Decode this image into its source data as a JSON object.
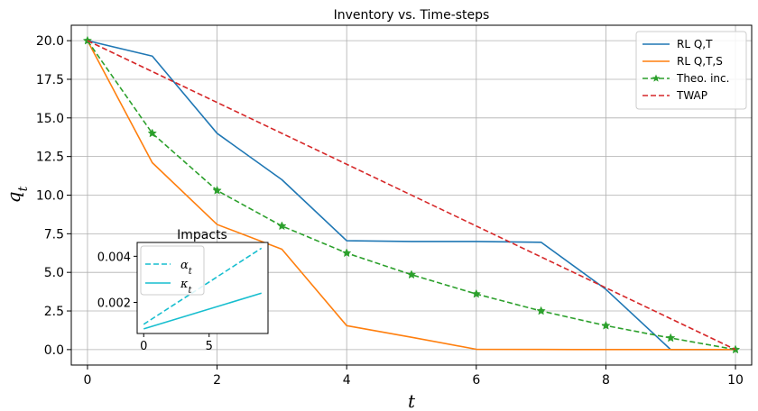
{
  "chart_data": [
    {
      "type": "line",
      "title": "Inventory vs. Time-steps",
      "xlabel": "t",
      "ylabel": "q_t",
      "xlim": [
        -0.25,
        10.25
      ],
      "ylim": [
        -1.0,
        21.0
      ],
      "xticks": [
        0,
        2,
        4,
        6,
        8,
        10
      ],
      "xtick_labels": [
        "0",
        "2",
        "4",
        "6",
        "8",
        "10"
      ],
      "yticks": [
        0,
        2.5,
        5,
        7.5,
        10,
        12.5,
        15,
        17.5,
        20
      ],
      "ytick_labels": [
        "0.0",
        "2.5",
        "5.0",
        "7.5",
        "10.0",
        "12.5",
        "15.0",
        "17.5",
        "20.0"
      ],
      "grid": true,
      "legend": "top-right",
      "series": [
        {
          "name": "RL Q,T",
          "color": "#1f77b4",
          "dash": "solid",
          "marker": "none",
          "x": [
            0,
            1,
            2,
            3,
            4,
            5,
            6,
            7,
            8,
            9,
            10
          ],
          "y": [
            20,
            19,
            14,
            11,
            7.05,
            7.0,
            7.0,
            6.95,
            3.9,
            0.0,
            0.0
          ]
        },
        {
          "name": "RL Q,T,S",
          "color": "#ff7f0e",
          "dash": "solid",
          "marker": "none",
          "x": [
            0,
            1,
            2,
            3,
            4,
            5,
            6,
            7,
            8,
            9,
            10
          ],
          "y": [
            20,
            12.1,
            8.1,
            6.5,
            1.55,
            0.8,
            0.02,
            0.01,
            0.0,
            0.0,
            0.0
          ]
        },
        {
          "name": "Theo. inc.",
          "color": "#2ca02c",
          "dash": "dashed",
          "marker": "star",
          "x": [
            0,
            1,
            2,
            3,
            4,
            5,
            6,
            7,
            8,
            9,
            10
          ],
          "y": [
            20,
            14.0,
            10.3,
            8.0,
            6.25,
            4.85,
            3.6,
            2.5,
            1.55,
            0.75,
            0.0
          ]
        },
        {
          "name": "TWAP",
          "color": "#d62728",
          "dash": "dashed",
          "marker": "none",
          "x": [
            0,
            10
          ],
          "y": [
            20,
            0
          ]
        }
      ]
    },
    {
      "type": "line",
      "title": "Impacts",
      "xlabel": "",
      "ylabel": "",
      "xlim": [
        -0.5,
        9.5
      ],
      "ylim": [
        0.00065,
        0.0046
      ],
      "xticks": [
        0,
        5
      ],
      "xtick_labels": [
        "0",
        "5"
      ],
      "yticks": [
        0.002,
        0.004
      ],
      "ytick_labels": [
        "0.002",
        "0.004"
      ],
      "grid": false,
      "legend": "top-left",
      "series": [
        {
          "name": "α_t",
          "color": "#17becf",
          "dash": "dashed",
          "x": [
            0,
            9
          ],
          "y": [
            0.00105,
            0.00435
          ]
        },
        {
          "name": "κ_t",
          "color": "#17becf",
          "dash": "solid",
          "x": [
            0,
            9
          ],
          "y": [
            0.00085,
            0.0024
          ]
        }
      ]
    }
  ]
}
